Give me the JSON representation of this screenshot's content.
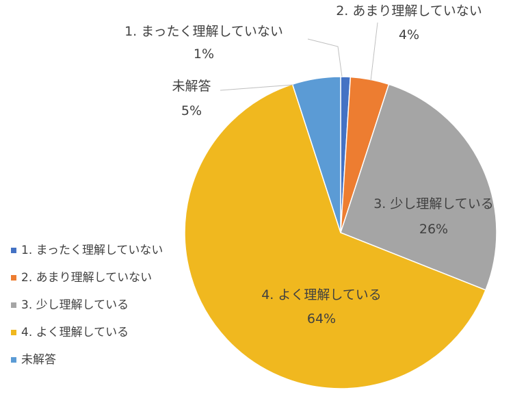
{
  "chart_data": {
    "type": "pie",
    "title": "",
    "series": [
      {
        "name": "",
        "categories": [
          "1. まったく理解していない",
          "2. あまり理解していない",
          "3. 少し理解している",
          "4. よく理解している",
          "未解答"
        ],
        "values": [
          1,
          4,
          26,
          64,
          5
        ],
        "value_labels": [
          "1%",
          "4%",
          "26%",
          "64%",
          "5%"
        ],
        "colors": [
          "#4472C4",
          "#ED7D31",
          "#A5A5A5",
          "#F0B81F",
          "#5B9BD5"
        ]
      }
    ],
    "start_angle": "12 o'clock",
    "direction": "clockwise",
    "legend": {
      "position": "left",
      "entries": [
        "1. まったく理解していない",
        "2. あまり理解していない",
        "3. 少し理解している",
        "4. よく理解している",
        "未解答"
      ]
    }
  }
}
